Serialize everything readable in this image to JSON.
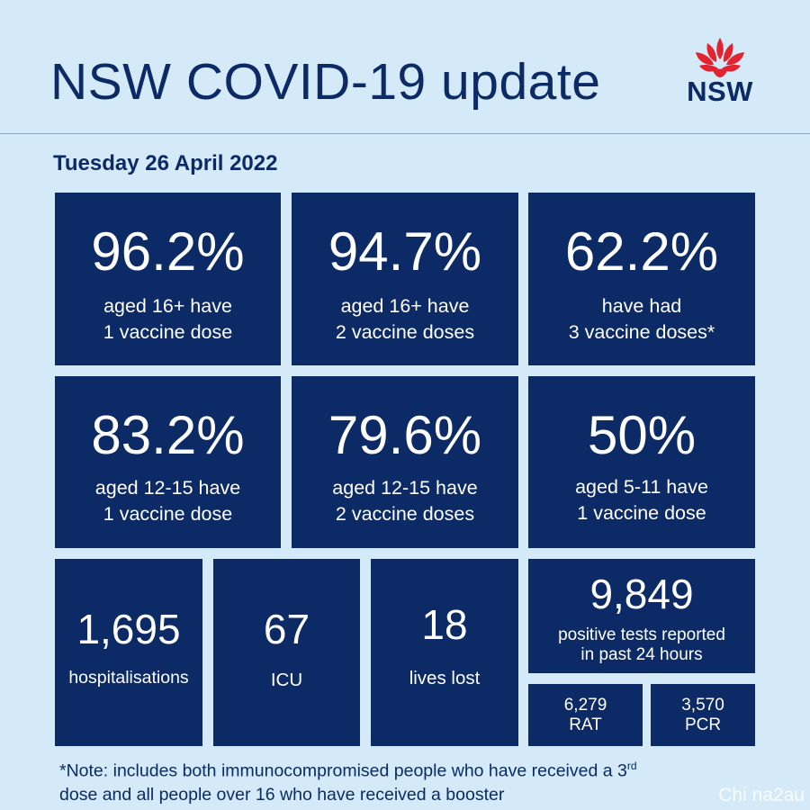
{
  "header": {
    "title": "NSW COVID-19 update",
    "logo_text": "NSW",
    "logo_icon": "waratah-icon"
  },
  "date": "Tuesday 26 April 2022",
  "stats": [
    {
      "value": "96.2%",
      "line1": "aged 16+ have",
      "line2": "1 vaccine dose"
    },
    {
      "value": "94.7%",
      "line1": "aged 16+ have",
      "line2": "2 vaccine doses"
    },
    {
      "value": "62.2%",
      "line1": "have had",
      "line2": "3 vaccine doses*"
    },
    {
      "value": "83.2%",
      "line1": "aged 12-15 have",
      "line2": "1 vaccine dose"
    },
    {
      "value": "79.6%",
      "line1": "aged 12-15 have",
      "line2": "2 vaccine doses"
    },
    {
      "value": "50%",
      "line1": "aged 5-11 have",
      "line2": "1 vaccine dose"
    }
  ],
  "hospitalisations": {
    "value": "1,695",
    "label": "hospitalisations"
  },
  "icu": {
    "value": "67",
    "label": "ICU"
  },
  "deaths": {
    "value": "18",
    "label": "lives lost"
  },
  "positive_tests": {
    "value": "9,849",
    "line1": "positive tests reported",
    "line2": "in past 24 hours"
  },
  "rat": {
    "value": "6,279",
    "label": "RAT"
  },
  "pcr": {
    "value": "3,570",
    "label": "PCR"
  },
  "note": {
    "text1": "*Note: includes both immunocompromised  people who have received a 3",
    "sup": "rd",
    "text2": "dose and all people over 16 who have received a booster"
  },
  "watermark": "Chi na2au",
  "colors": {
    "tile": "#0b2a66",
    "background": "#d5eaf8",
    "logo_red": "#e1242f"
  }
}
